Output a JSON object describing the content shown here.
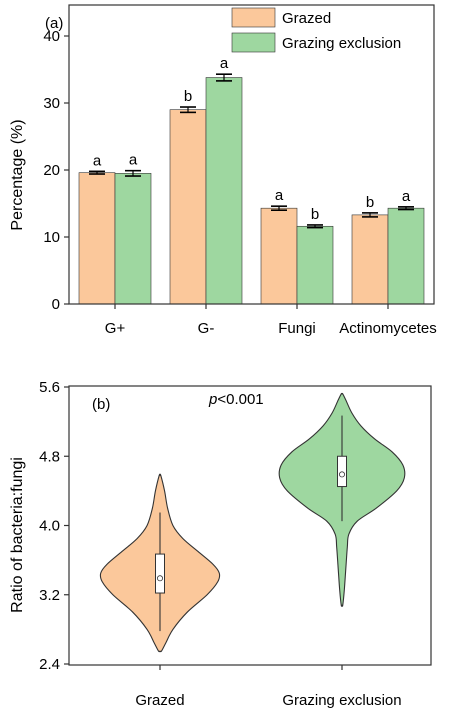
{
  "colors": {
    "grazed": "#fbc89b",
    "exclusion": "#9ed7a0",
    "stroke": "#333333"
  },
  "chart_data": [
    {
      "panel_label": "(a)",
      "type": "bar",
      "ylabel": "Percentage (%)",
      "ylim": [
        0,
        40
      ],
      "yticks": [
        "0",
        "10",
        "20",
        "30",
        "40"
      ],
      "categories": [
        "G+",
        "G-",
        "Fungi",
        "Actinomycetes"
      ],
      "legend": {
        "position": "top-right"
      },
      "series": [
        {
          "name": "Grazed",
          "values": [
            19.6,
            29.0,
            14.3,
            13.3
          ],
          "errors": [
            0.2,
            0.4,
            0.3,
            0.3
          ],
          "letters": [
            "a",
            "b",
            "a",
            "b"
          ]
        },
        {
          "name": "Grazing exclusion",
          "values": [
            19.5,
            33.8,
            11.6,
            14.3
          ],
          "errors": [
            0.4,
            0.5,
            0.2,
            0.2
          ],
          "letters": [
            "a",
            "a",
            "b",
            "a"
          ]
        }
      ]
    },
    {
      "panel_label": "(b)",
      "type": "violin",
      "ylabel": "Ratio of bacteria:fungi",
      "ylim": [
        2.4,
        5.6
      ],
      "yticks": [
        "2.4",
        "3.2",
        "4.0",
        "4.8",
        "5.6"
      ],
      "annotation": {
        "prefix": "p",
        "text": "<0.001"
      },
      "categories": [
        "Grazed",
        "Grazing exclusion"
      ],
      "groups": [
        {
          "name": "Grazed",
          "min": 2.55,
          "max": 4.58,
          "whisker_low": 2.78,
          "whisker_high": 4.15,
          "q1": 3.22,
          "q3": 3.67,
          "mean": 3.39,
          "density": [
            [
              2.55,
              0.02
            ],
            [
              2.65,
              0.08
            ],
            [
              2.8,
              0.17
            ],
            [
              3.0,
              0.36
            ],
            [
              3.2,
              0.62
            ],
            [
              3.35,
              0.76
            ],
            [
              3.45,
              0.78
            ],
            [
              3.55,
              0.7
            ],
            [
              3.7,
              0.5
            ],
            [
              3.85,
              0.3
            ],
            [
              4.0,
              0.17
            ],
            [
              4.2,
              0.1
            ],
            [
              4.4,
              0.06
            ],
            [
              4.58,
              0.01
            ]
          ]
        },
        {
          "name": "Grazing exclusion",
          "min": 3.08,
          "max": 5.52,
          "whisker_low": 4.05,
          "whisker_high": 5.27,
          "q1": 4.45,
          "q3": 4.8,
          "mean": 4.59,
          "density": [
            [
              3.08,
              0.01
            ],
            [
              3.25,
              0.03
            ],
            [
              3.5,
              0.05
            ],
            [
              3.75,
              0.07
            ],
            [
              3.9,
              0.09
            ],
            [
              4.05,
              0.2
            ],
            [
              4.2,
              0.45
            ],
            [
              4.4,
              0.72
            ],
            [
              4.55,
              0.82
            ],
            [
              4.7,
              0.8
            ],
            [
              4.85,
              0.66
            ],
            [
              5.0,
              0.43
            ],
            [
              5.15,
              0.25
            ],
            [
              5.3,
              0.13
            ],
            [
              5.45,
              0.05
            ],
            [
              5.52,
              0.01
            ]
          ]
        }
      ]
    }
  ]
}
